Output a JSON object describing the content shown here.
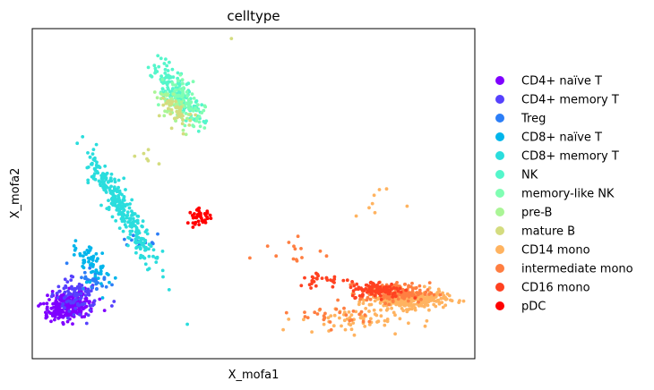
{
  "chart_data": {
    "type": "scatter",
    "title": "celltype",
    "xlabel": "X_mofa1",
    "ylabel": "X_mofa2",
    "xlim": [
      0,
      100
    ],
    "ylim": [
      0,
      100
    ],
    "grid": false,
    "ticks": false,
    "legend_position": "right",
    "categories": [
      {
        "name": "CD4+ naïve T",
        "color": "#7f00ff"
      },
      {
        "name": "CD4+ memory T",
        "color": "#5641fd"
      },
      {
        "name": "Treg",
        "color": "#2c7ef7"
      },
      {
        "name": "CD8+ naïve T",
        "color": "#00b5eb"
      },
      {
        "name": "CD8+ memory T",
        "color": "#2adddd"
      },
      {
        "name": "NK",
        "color": "#54f6cb"
      },
      {
        "name": "memory-like NK",
        "color": "#80feb3"
      },
      {
        "name": "pre-B",
        "color": "#aaf596"
      },
      {
        "name": "mature B",
        "color": "#d4dc7f"
      },
      {
        "name": "CD14 mono",
        "color": "#ffb360"
      },
      {
        "name": "intermediate mono",
        "color": "#ff7e41"
      },
      {
        "name": "CD16 mono",
        "color": "#ff4121"
      },
      {
        "name": "pDC",
        "color": "#ff0000"
      }
    ],
    "clusters": [
      {
        "category": "CD4+ naïve T",
        "center": [
          8,
          16
        ],
        "spread": [
          4.5,
          3.5
        ],
        "n": 260,
        "angle": 0.35
      },
      {
        "category": "CD4+ memory T",
        "center": [
          10,
          19
        ],
        "spread": [
          4.5,
          4
        ],
        "n": 90,
        "angle": 0.6
      },
      {
        "category": "Treg",
        "center": [
          14,
          24
        ],
        "spread": [
          3,
          4
        ],
        "n": 30,
        "angle": 0.8
      },
      {
        "category": "Treg",
        "center": [
          24,
          35
        ],
        "spread": [
          5,
          2
        ],
        "n": 12,
        "angle": 0.2
      },
      {
        "category": "CD8+ naïve T",
        "center": [
          14,
          28
        ],
        "spread": [
          2.5,
          6
        ],
        "n": 60,
        "angle": 0.55
      },
      {
        "category": "CD8+ memory T",
        "center": [
          20,
          46
        ],
        "spread": [
          2.2,
          16
        ],
        "n": 300,
        "angle": 0.42
      },
      {
        "category": "NK",
        "center": [
          33,
          80
        ],
        "spread": [
          2.5,
          9
        ],
        "n": 160,
        "angle": 0.45
      },
      {
        "category": "memory-like NK",
        "center": [
          34,
          78
        ],
        "spread": [
          3,
          6
        ],
        "n": 90,
        "angle": 0.45
      },
      {
        "category": "pre-B",
        "center": [
          32,
          76
        ],
        "spread": [
          2.2,
          4.5
        ],
        "n": 45,
        "angle": 0.4
      },
      {
        "category": "mature B",
        "center": [
          33,
          75
        ],
        "spread": [
          2,
          4
        ],
        "n": 40,
        "angle": 0.4
      },
      {
        "category": "mature B",
        "center": [
          26,
          60
        ],
        "spread": [
          2,
          4
        ],
        "n": 6,
        "angle": 0.4
      },
      {
        "category": "pDC",
        "center": [
          38,
          43
        ],
        "spread": [
          2.2,
          1.8
        ],
        "n": 40,
        "angle": 0
      },
      {
        "category": "CD14 mono",
        "center": [
          85,
          18
        ],
        "spread": [
          7,
          2.2
        ],
        "n": 330,
        "angle": 0
      },
      {
        "category": "CD14 mono",
        "center": [
          72,
          12
        ],
        "spread": [
          10,
          3.5
        ],
        "n": 70,
        "angle": 0
      },
      {
        "category": "CD14 mono",
        "center": [
          78,
          45
        ],
        "spread": [
          6,
          6
        ],
        "n": 8,
        "angle": 0
      },
      {
        "category": "intermediate mono",
        "center": [
          82,
          20
        ],
        "spread": [
          6.5,
          2.5
        ],
        "n": 130,
        "angle": 0
      },
      {
        "category": "intermediate mono",
        "center": [
          58,
          32
        ],
        "spread": [
          8,
          4
        ],
        "n": 14,
        "angle": 0
      },
      {
        "category": "intermediate mono",
        "center": [
          70,
          13
        ],
        "spread": [
          8,
          3
        ],
        "n": 25,
        "angle": 0
      },
      {
        "category": "CD16 mono",
        "center": [
          78,
          21
        ],
        "spread": [
          5,
          2
        ],
        "n": 110,
        "angle": 0
      },
      {
        "category": "CD16 mono",
        "center": [
          66,
          24
        ],
        "spread": [
          5,
          2
        ],
        "n": 30,
        "angle": 0
      }
    ],
    "outliers": [
      {
        "category": "mature B",
        "x": 45,
        "y": 97
      },
      {
        "category": "CD4+ memory T",
        "x": 18,
        "y": 16
      }
    ]
  }
}
